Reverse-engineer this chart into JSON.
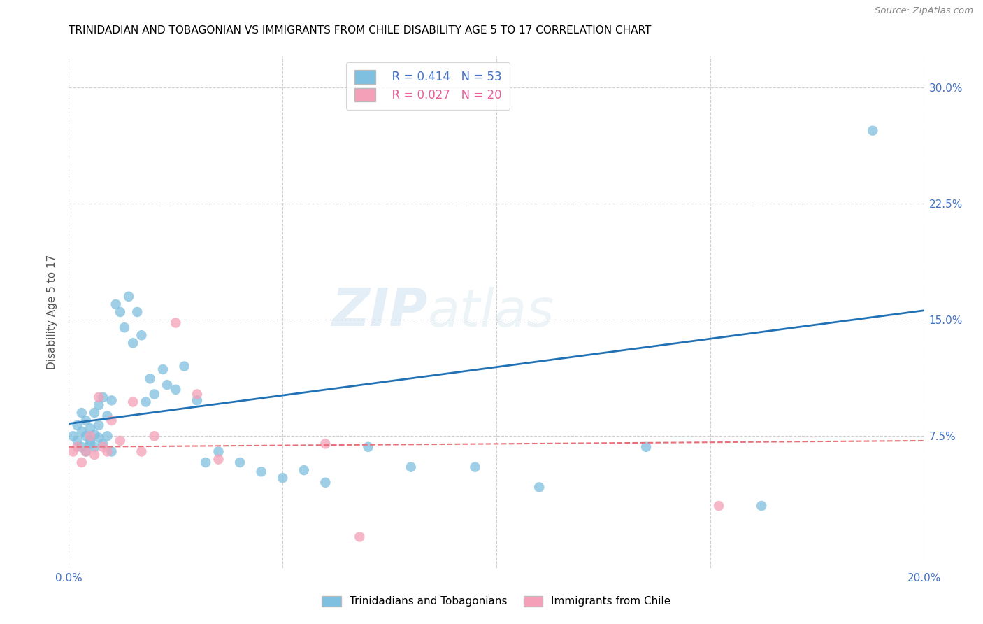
{
  "title": "TRINIDADIAN AND TOBAGONIAN VS IMMIGRANTS FROM CHILE DISABILITY AGE 5 TO 17 CORRELATION CHART",
  "source": "Source: ZipAtlas.com",
  "ylabel": "Disability Age 5 to 17",
  "xlim": [
    0.0,
    0.2
  ],
  "ylim": [
    -0.01,
    0.32
  ],
  "xticks": [
    0.0,
    0.05,
    0.1,
    0.15,
    0.2
  ],
  "xticklabels": [
    "0.0%",
    "",
    "",
    "",
    "20.0%"
  ],
  "yticks": [
    0.075,
    0.15,
    0.225,
    0.3
  ],
  "yticklabels": [
    "7.5%",
    "15.0%",
    "22.5%",
    "30.0%"
  ],
  "blue_color": "#7fbfdf",
  "pink_color": "#f4a0b8",
  "blue_line_color": "#2171b5",
  "pink_line_color": "#e8707a",
  "blue_R": "0.414",
  "blue_N": "53",
  "pink_R": "0.027",
  "pink_N": "20",
  "watermark_zip": "ZIP",
  "watermark_atlas": "atlas",
  "blue_line_x0": 0.0,
  "blue_line_y0": 0.083,
  "blue_line_x1": 0.2,
  "blue_line_y1": 0.156,
  "pink_line_x0": 0.0,
  "pink_line_y0": 0.068,
  "pink_line_x1": 0.2,
  "pink_line_y1": 0.072,
  "blue_scatter_x": [
    0.001,
    0.002,
    0.002,
    0.003,
    0.003,
    0.003,
    0.004,
    0.004,
    0.004,
    0.005,
    0.005,
    0.005,
    0.006,
    0.006,
    0.006,
    0.007,
    0.007,
    0.007,
    0.008,
    0.008,
    0.009,
    0.009,
    0.01,
    0.01,
    0.011,
    0.012,
    0.013,
    0.014,
    0.015,
    0.016,
    0.017,
    0.018,
    0.019,
    0.02,
    0.022,
    0.023,
    0.025,
    0.027,
    0.03,
    0.032,
    0.035,
    0.04,
    0.045,
    0.05,
    0.055,
    0.06,
    0.07,
    0.08,
    0.095,
    0.11,
    0.135,
    0.162,
    0.188
  ],
  "blue_scatter_y": [
    0.075,
    0.072,
    0.082,
    0.068,
    0.078,
    0.09,
    0.065,
    0.075,
    0.085,
    0.07,
    0.08,
    0.072,
    0.068,
    0.076,
    0.09,
    0.074,
    0.082,
    0.095,
    0.07,
    0.1,
    0.075,
    0.088,
    0.065,
    0.098,
    0.16,
    0.155,
    0.145,
    0.165,
    0.135,
    0.155,
    0.14,
    0.097,
    0.112,
    0.102,
    0.118,
    0.108,
    0.105,
    0.12,
    0.098,
    0.058,
    0.065,
    0.058,
    0.052,
    0.048,
    0.053,
    0.045,
    0.068,
    0.055,
    0.055,
    0.042,
    0.068,
    0.03,
    0.272
  ],
  "pink_scatter_x": [
    0.001,
    0.002,
    0.003,
    0.004,
    0.005,
    0.006,
    0.007,
    0.008,
    0.009,
    0.01,
    0.012,
    0.015,
    0.017,
    0.02,
    0.025,
    0.03,
    0.035,
    0.06,
    0.068,
    0.152
  ],
  "pink_scatter_y": [
    0.065,
    0.068,
    0.058,
    0.065,
    0.075,
    0.063,
    0.1,
    0.068,
    0.065,
    0.085,
    0.072,
    0.097,
    0.065,
    0.075,
    0.148,
    0.102,
    0.06,
    0.07,
    0.01,
    0.03
  ],
  "tick_color": "#4472c4",
  "grid_color": "#d0d0d0",
  "legend_text_blue_color": "#4472c4",
  "legend_text_pink_color": "#e8609a"
}
